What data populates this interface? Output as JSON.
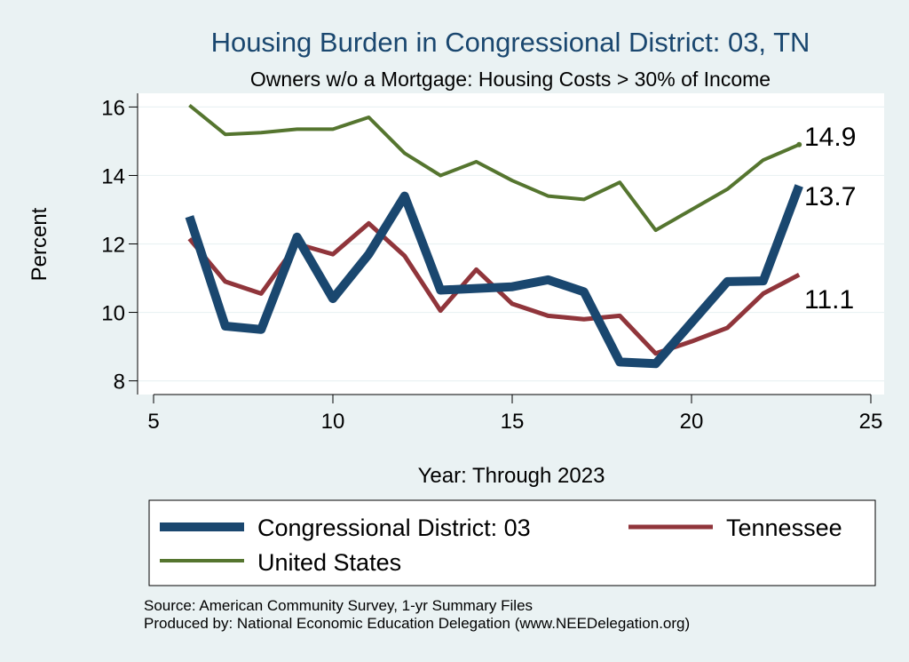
{
  "chart_data": {
    "type": "line",
    "title": "Housing Burden in Congressional District:  03, TN",
    "subtitle": "Owners w/o a Mortgage: Housing Costs > 30% of Income",
    "xlabel": "Year: Through 2023",
    "ylabel": "Percent",
    "xlim": [
      5,
      25
    ],
    "ylim": [
      7.6,
      16.4
    ],
    "xticks": [
      5,
      10,
      15,
      20,
      25
    ],
    "yticks": [
      8,
      10,
      12,
      14,
      16
    ],
    "grid": true,
    "legend_position": "bottom",
    "series": [
      {
        "name": "Congressional District:  03",
        "color": "#1a476f",
        "x": [
          6,
          7,
          8,
          9,
          10,
          11,
          12,
          13,
          14,
          15,
          16,
          17,
          18,
          19,
          20,
          21,
          22,
          23
        ],
        "values": [
          12.8,
          9.6,
          9.5,
          12.2,
          10.4,
          11.7,
          13.4,
          10.65,
          10.7,
          10.75,
          10.95,
          10.6,
          8.55,
          8.5,
          9.7,
          10.9,
          10.92,
          13.7
        ],
        "end_label": "13.7"
      },
      {
        "name": "Tennessee",
        "color": "#90353b",
        "x": [
          6,
          7,
          8,
          9,
          10,
          11,
          12,
          13,
          14,
          15,
          16,
          17,
          18,
          19,
          20,
          21,
          22,
          23
        ],
        "values": [
          12.15,
          10.9,
          10.55,
          12.0,
          11.7,
          12.6,
          11.65,
          10.05,
          11.25,
          10.25,
          9.9,
          9.8,
          9.9,
          8.8,
          9.15,
          9.55,
          10.55,
          11.1
        ],
        "end_label": "11.1"
      },
      {
        "name": "United States",
        "color": "#55752f",
        "x": [
          6,
          7,
          8,
          9,
          10,
          11,
          12,
          13,
          14,
          15,
          16,
          17,
          18,
          19,
          20,
          21,
          22,
          23
        ],
        "values": [
          16.05,
          15.2,
          15.25,
          15.35,
          15.35,
          15.7,
          14.65,
          14.0,
          14.4,
          13.85,
          13.4,
          13.3,
          13.8,
          12.4,
          13.0,
          13.6,
          14.45,
          14.9
        ],
        "end_label": "14.9"
      }
    ],
    "notes": [
      "Source: American Community Survey, 1-yr Summary Files",
      "Produced by: National Economic Education Delegation (www.NEEDelegation.org)"
    ]
  }
}
